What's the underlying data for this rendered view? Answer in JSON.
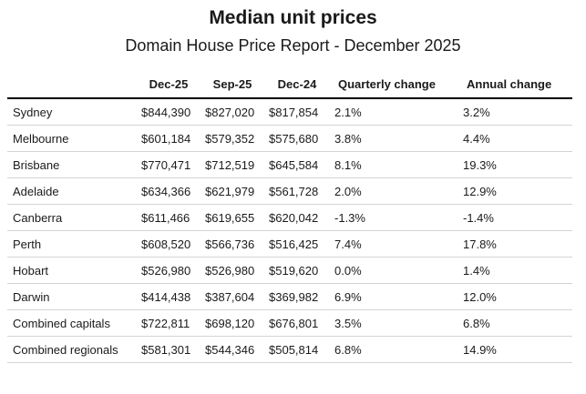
{
  "header": {
    "title": "Median unit prices",
    "subtitle": "Domain House Price Report - December 2025"
  },
  "table": {
    "columns": [
      "",
      "Dec-25",
      "Sep-25",
      "Dec-24",
      "Quarterly change",
      "Annual change"
    ],
    "rows": [
      [
        "Sydney",
        "$844,390",
        "$827,020",
        "$817,854",
        "2.1%",
        "3.2%"
      ],
      [
        "Melbourne",
        "$601,184",
        "$579,352",
        "$575,680",
        "3.8%",
        "4.4%"
      ],
      [
        "Brisbane",
        "$770,471",
        "$712,519",
        "$645,584",
        "8.1%",
        "19.3%"
      ],
      [
        "Adelaide",
        "$634,366",
        "$621,979",
        "$561,728",
        "2.0%",
        "12.9%"
      ],
      [
        "Canberra",
        "$611,466",
        "$619,655",
        "$620,042",
        "-1.3%",
        "-1.4%"
      ],
      [
        "Perth",
        "$608,520",
        "$566,736",
        "$516,425",
        "7.4%",
        "17.8%"
      ],
      [
        "Hobart",
        "$526,980",
        "$526,980",
        "$519,620",
        "0.0%",
        "1.4%"
      ],
      [
        "Darwin",
        "$414,438",
        "$387,604",
        "$369,982",
        "6.9%",
        "12.0%"
      ],
      [
        "Combined capitals",
        "$722,811",
        "$698,120",
        "$676,801",
        "3.5%",
        "6.8%"
      ],
      [
        "Combined regionals",
        "$581,301",
        "$544,346",
        "$505,814",
        "6.8%",
        "14.9%"
      ]
    ]
  }
}
